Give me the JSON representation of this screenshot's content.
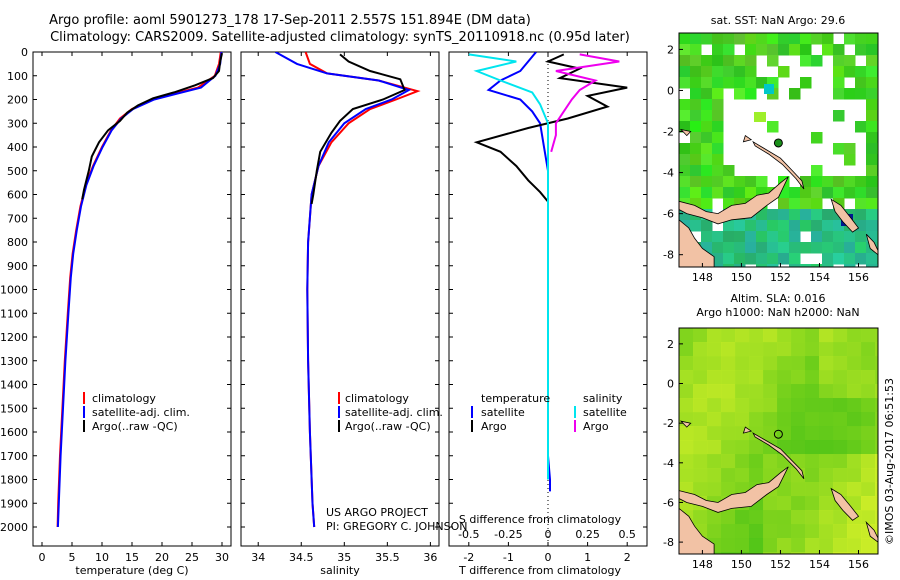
{
  "header": {
    "line1": "Argo profile: aoml 5901273_178 17-Sep-2011 2.557S 151.894E (DM data)",
    "line2": "Climatology: CARS2009. Satellite-adjusted climatology: synTS_20110918.nc (0.95d later)"
  },
  "footer": {
    "project": "US ARGO PROJECT",
    "pi": "PI: GREGORY C. JOHNSON",
    "stamp": "©IMOS 03-Aug-2017 06:51:53"
  },
  "colors": {
    "climatology": "#ff0000",
    "satellite": "#0000ff",
    "argo": "#000000",
    "salinity_satellite": "#00e5ee",
    "salinity_argo": "#ee00ee",
    "land": "#f2c2a5"
  },
  "chart_data": [
    {
      "type": "line",
      "id": "temperature",
      "title": "",
      "xlabel": "temperature (deg C)",
      "ylabel": "",
      "xlim": [
        -1.5,
        31.5
      ],
      "ylim": [
        0,
        2080
      ],
      "xticks": [
        0,
        5,
        10,
        15,
        20,
        25,
        30
      ],
      "yticks": [
        0,
        100,
        200,
        300,
        400,
        500,
        600,
        700,
        800,
        900,
        1000,
        1100,
        1200,
        1300,
        1400,
        1500,
        1600,
        1700,
        1800,
        1900,
        2000
      ],
      "legend": [
        "climatology",
        "satellite-adj. clim.",
        "Argo(..raw -QC)"
      ],
      "series": [
        {
          "name": "climatology",
          "color": "#ff0000",
          "points": [
            [
              29.8,
              0
            ],
            [
              29.5,
              50
            ],
            [
              28.8,
              100
            ],
            [
              26,
              150
            ],
            [
              22,
              175
            ],
            [
              18.5,
              200
            ],
            [
              15,
              240
            ],
            [
              13,
              280
            ],
            [
              11.5,
              330
            ],
            [
              10,
              400
            ],
            [
              8.5,
              480
            ],
            [
              7.3,
              560
            ],
            [
              6.4,
              650
            ],
            [
              5.7,
              750
            ],
            [
              5.1,
              850
            ],
            [
              4.7,
              950
            ],
            [
              4.3,
              1100
            ],
            [
              3.8,
              1300
            ],
            [
              3.4,
              1500
            ],
            [
              3.0,
              1700
            ],
            [
              2.7,
              1900
            ],
            [
              2.6,
              2000
            ]
          ]
        },
        {
          "name": "satellite-adj. clim.",
          "color": "#0000ff",
          "points": [
            [
              29.9,
              0
            ],
            [
              29.7,
              50
            ],
            [
              28.9,
              100
            ],
            [
              26.5,
              150
            ],
            [
              22.5,
              175
            ],
            [
              18.7,
              200
            ],
            [
              15.2,
              240
            ],
            [
              13.2,
              280
            ],
            [
              11.6,
              330
            ],
            [
              10.1,
              400
            ],
            [
              8.6,
              480
            ],
            [
              7.4,
              560
            ],
            [
              6.5,
              650
            ],
            [
              5.8,
              750
            ],
            [
              5.2,
              850
            ],
            [
              4.8,
              950
            ],
            [
              4.4,
              1100
            ],
            [
              3.9,
              1300
            ],
            [
              3.5,
              1500
            ],
            [
              3.1,
              1700
            ],
            [
              2.8,
              1900
            ],
            [
              2.65,
              2000
            ]
          ]
        },
        {
          "name": "Argo(..raw -QC)",
          "color": "#000000",
          "points": [
            [
              30,
              5
            ],
            [
              29.7,
              40
            ],
            [
              29.5,
              80
            ],
            [
              28.5,
              110
            ],
            [
              25.5,
              140
            ],
            [
              22,
              170
            ],
            [
              18.5,
              195
            ],
            [
              16,
              225
            ],
            [
              14.2,
              255
            ],
            [
              13,
              290
            ],
            [
              11,
              330
            ],
            [
              9.5,
              380
            ],
            [
              8.3,
              440
            ],
            [
              7.8,
              500
            ],
            [
              7.4,
              540
            ],
            [
              7.0,
              580
            ],
            [
              6.7,
              620
            ]
          ]
        }
      ]
    },
    {
      "type": "line",
      "id": "salinity",
      "title": "",
      "xlabel": "salinity",
      "ylabel": "",
      "xlim": [
        33.8,
        36.1
      ],
      "ylim": [
        0,
        2080
      ],
      "xticks": [
        34,
        34.5,
        35,
        35.5,
        36
      ],
      "legend": [
        "climatology",
        "satellite-adj. clim.",
        "Argo(..raw -QC)"
      ],
      "series": [
        {
          "name": "climatology",
          "color": "#ff0000",
          "points": [
            [
              34.55,
              0
            ],
            [
              34.6,
              50
            ],
            [
              34.8,
              90
            ],
            [
              35.4,
              120
            ],
            [
              35.85,
              165
            ],
            [
              35.6,
              200
            ],
            [
              35.3,
              240
            ],
            [
              35.05,
              300
            ],
            [
              34.85,
              380
            ],
            [
              34.7,
              480
            ],
            [
              34.62,
              600
            ],
            [
              34.58,
              800
            ],
            [
              34.57,
              1000
            ],
            [
              34.58,
              1300
            ],
            [
              34.6,
              1600
            ],
            [
              34.63,
              1900
            ],
            [
              34.65,
              2000
            ]
          ]
        },
        {
          "name": "satellite-adj. clim.",
          "color": "#0000ff",
          "points": [
            [
              34.2,
              0
            ],
            [
              34.45,
              50
            ],
            [
              34.8,
              90
            ],
            [
              35.4,
              120
            ],
            [
              35.75,
              160
            ],
            [
              35.55,
              200
            ],
            [
              35.25,
              240
            ],
            [
              35.0,
              300
            ],
            [
              34.82,
              380
            ],
            [
              34.7,
              480
            ],
            [
              34.62,
              600
            ],
            [
              34.58,
              800
            ],
            [
              34.57,
              1000
            ],
            [
              34.58,
              1300
            ],
            [
              34.6,
              1600
            ],
            [
              34.63,
              1900
            ],
            [
              34.65,
              2000
            ]
          ]
        },
        {
          "name": "Argo(..raw -QC)",
          "color": "#000000",
          "points": [
            [
              34.95,
              10
            ],
            [
              35.05,
              40
            ],
            [
              35.3,
              80
            ],
            [
              35.65,
              115
            ],
            [
              35.7,
              160
            ],
            [
              35.45,
              200
            ],
            [
              35.1,
              240
            ],
            [
              34.95,
              290
            ],
            [
              34.85,
              340
            ],
            [
              34.72,
              420
            ],
            [
              34.68,
              500
            ],
            [
              34.64,
              600
            ],
            [
              34.62,
              640
            ]
          ]
        }
      ]
    },
    {
      "type": "line",
      "id": "differences",
      "title": "",
      "xlabel": "T difference from climatology",
      "xlabel2": "S difference from climatology",
      "ylabel": "",
      "xlim": [
        -2.5,
        2.5
      ],
      "xlim_salinity": [
        -0.625,
        0.625
      ],
      "ylim": [
        0,
        2080
      ],
      "xticks": [
        -2,
        -1,
        0,
        1,
        2
      ],
      "xticks_salinity": [
        -0.5,
        -0.25,
        0,
        0.25,
        0.5
      ],
      "legend_temperature_title": "temperature",
      "legend_salinity_title": "salinity",
      "legend": [
        "satellite",
        "Argo",
        "satellite",
        "Argo"
      ],
      "series": [
        {
          "name": "temperature satellite",
          "color": "#0000ff",
          "points": [
            [
              -0.3,
              0
            ],
            [
              -0.5,
              40
            ],
            [
              -0.7,
              80
            ],
            [
              -1.2,
              120
            ],
            [
              -1.5,
              160
            ],
            [
              -0.7,
              200
            ],
            [
              -0.4,
              250
            ],
            [
              -0.2,
              300
            ],
            [
              -0.1,
              400
            ],
            [
              0,
              500
            ],
            [
              0,
              600
            ],
            [
              0,
              700
            ],
            [
              0,
              900
            ],
            [
              0,
              1100
            ],
            [
              0,
              1300
            ],
            [
              0,
              1500
            ],
            [
              0,
              1700
            ],
            [
              0.05,
              1800
            ],
            [
              0.05,
              1850
            ]
          ]
        },
        {
          "name": "temperature Argo",
          "color": "#000000",
          "points": [
            [
              0.4,
              10
            ],
            [
              0,
              40
            ],
            [
              0.8,
              70
            ],
            [
              0.3,
              110
            ],
            [
              2,
              150
            ],
            [
              1,
              185
            ],
            [
              1.5,
              230
            ],
            [
              0.5,
              280
            ],
            [
              -0.5,
              320
            ],
            [
              -1.8,
              380
            ],
            [
              -1.2,
              420
            ],
            [
              -0.8,
              480
            ],
            [
              -0.5,
              540
            ],
            [
              -0.2,
              590
            ],
            [
              0,
              630
            ]
          ]
        },
        {
          "name": "salinity satellite",
          "color": "#00e5ee",
          "points": [
            [
              -0.5,
              10
            ],
            [
              -0.2,
              40
            ],
            [
              -0.45,
              80
            ],
            [
              -0.3,
              120
            ],
            [
              -0.1,
              170
            ],
            [
              -0.05,
              220
            ],
            [
              0,
              300
            ],
            [
              0,
              400
            ],
            [
              0,
              600
            ],
            [
              0,
              800
            ],
            [
              0,
              1000
            ],
            [
              0,
              1200
            ],
            [
              0,
              1400
            ],
            [
              0,
              1600
            ],
            [
              0,
              1800
            ]
          ]
        },
        {
          "name": "salinity Argo",
          "color": "#ee00ee",
          "points": [
            [
              0.2,
              10
            ],
            [
              0.45,
              40
            ],
            [
              0.05,
              80
            ],
            [
              0.3,
              120
            ],
            [
              0.2,
              160
            ],
            [
              0.15,
              200
            ],
            [
              0.1,
              250
            ],
            [
              0.05,
              300
            ],
            [
              0.05,
              350
            ],
            [
              0.02,
              420
            ]
          ]
        }
      ]
    },
    {
      "type": "heatmap",
      "id": "sst-map",
      "title": "sat. SST: NaN Argo: 29.6",
      "xlim": [
        146.8,
        157
      ],
      "ylim": [
        -8.6,
        2.8
      ],
      "xticks": [
        148,
        150,
        152,
        154,
        156
      ],
      "yticks": [
        2,
        0,
        -2,
        -4,
        -6,
        -8
      ],
      "profile_location": [
        151.894,
        -2.557
      ]
    },
    {
      "type": "heatmap",
      "id": "sla-map",
      "title": "Altim. SLA: 0.016",
      "subtitle": "Argo h1000: NaN h2000: NaN",
      "xlim": [
        146.8,
        157
      ],
      "ylim": [
        -8.6,
        2.8
      ],
      "xticks": [
        148,
        150,
        152,
        154,
        156
      ],
      "yticks": [
        2,
        0,
        -2,
        -4,
        -6,
        -8
      ],
      "profile_location": [
        151.894,
        -2.557
      ]
    }
  ]
}
